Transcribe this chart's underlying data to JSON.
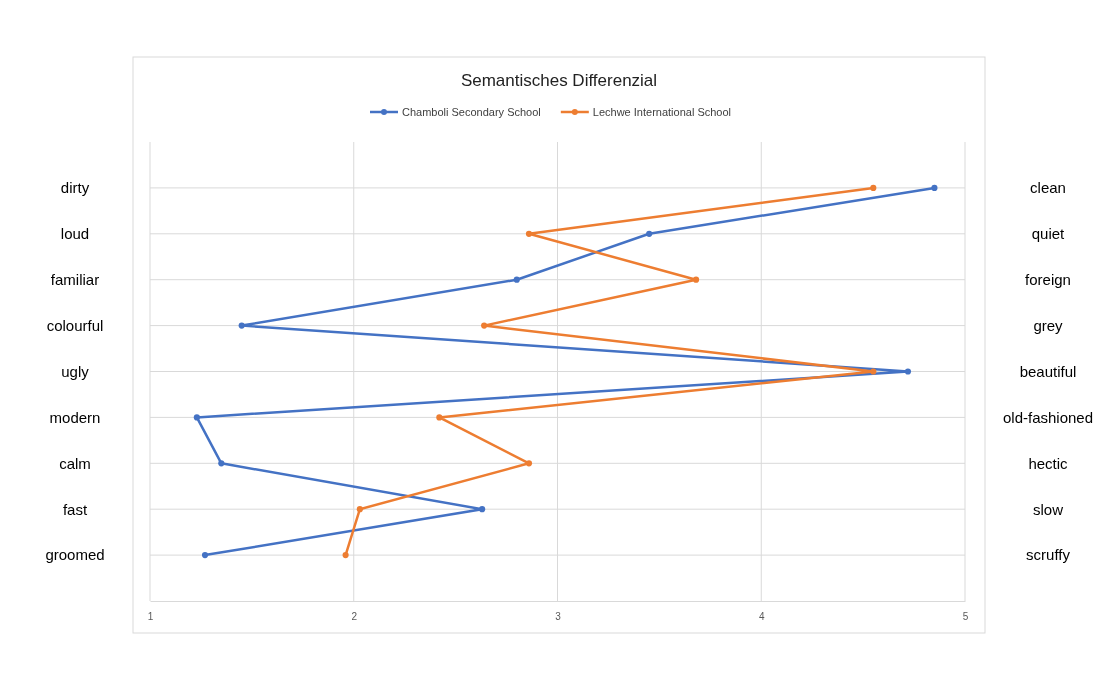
{
  "chart_data": {
    "type": "line",
    "orientation": "horizontal",
    "title": "Semantisches Differenzial",
    "categories": [
      "dirty",
      "loud",
      "familiar",
      "colourful",
      "ugly",
      "modern",
      "calm",
      "fast",
      "groomed"
    ],
    "y2_categories": [
      "clean",
      "quiet",
      "foreign",
      "grey",
      "beautiful",
      "old-fashioned",
      "hectic",
      "slow",
      "scruffy"
    ],
    "series": [
      {
        "name": "Chamboli Secondary School",
        "color": "#4472c4",
        "values": [
          4.85,
          3.45,
          2.8,
          1.45,
          4.72,
          1.23,
          1.35,
          2.63,
          1.27
        ]
      },
      {
        "name": "Lechwe International School",
        "color": "#ed7d31",
        "values": [
          4.55,
          2.86,
          3.68,
          2.64,
          4.55,
          2.42,
          2.86,
          2.03,
          1.96
        ]
      }
    ],
    "xlim": [
      1,
      5
    ],
    "xticks": [
      1,
      2,
      3,
      4,
      5
    ],
    "grid": true,
    "legend": "top",
    "marker": "circle",
    "line_style": "solid"
  }
}
